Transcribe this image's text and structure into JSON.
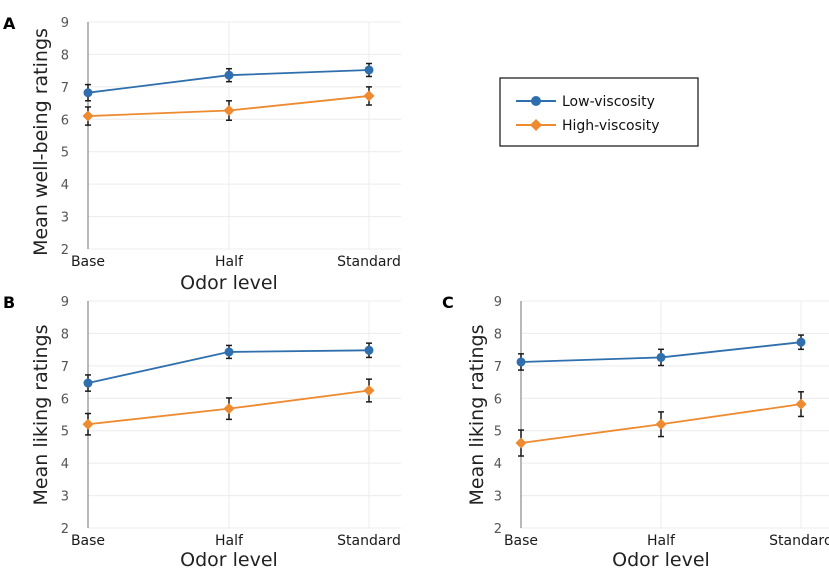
{
  "chart_data": [
    {
      "panel": "A",
      "type": "line",
      "title": "",
      "xlabel": "Odor level",
      "ylabel": "Mean well-being ratings",
      "categories": [
        "Base",
        "Half",
        "Standard"
      ],
      "ylim": [
        2,
        9
      ],
      "yticks": [
        "2",
        "3",
        "4",
        "5",
        "6",
        "7",
        "8",
        "9"
      ],
      "series": [
        {
          "name": "Low-viscosity",
          "values": [
            6.82,
            7.36,
            7.52
          ],
          "errors": [
            0.25,
            0.2,
            0.2
          ],
          "color": "#2f6fad",
          "marker": "circle"
        },
        {
          "name": "High-viscosity",
          "values": [
            6.1,
            6.27,
            6.72
          ],
          "errors": [
            0.28,
            0.3,
            0.28
          ],
          "color": "#ee8a2f",
          "marker": "diamond"
        }
      ]
    },
    {
      "panel": "B",
      "type": "line",
      "title": "",
      "xlabel": "Odor level",
      "ylabel": "Mean liking ratings",
      "categories": [
        "Base",
        "Half",
        "Standard"
      ],
      "ylim": [
        2,
        9
      ],
      "yticks": [
        "2",
        "3",
        "4",
        "5",
        "6",
        "7",
        "8",
        "9"
      ],
      "series": [
        {
          "name": "Low-viscosity",
          "values": [
            6.47,
            7.43,
            7.48
          ],
          "errors": [
            0.25,
            0.2,
            0.22
          ],
          "color": "#2f6fad",
          "marker": "circle"
        },
        {
          "name": "High-viscosity",
          "values": [
            5.2,
            5.68,
            6.24
          ],
          "errors": [
            0.33,
            0.33,
            0.35
          ],
          "color": "#ee8a2f",
          "marker": "diamond"
        }
      ]
    },
    {
      "panel": "C",
      "type": "line",
      "title": "",
      "xlabel": "Odor level",
      "ylabel": "Mean liking ratings",
      "categories": [
        "Base",
        "Half",
        "Standard"
      ],
      "ylim": [
        2,
        9
      ],
      "yticks": [
        "2",
        "3",
        "4",
        "5",
        "6",
        "7",
        "8",
        "9"
      ],
      "series": [
        {
          "name": "Low-viscosity",
          "values": [
            7.12,
            7.26,
            7.73
          ],
          "errors": [
            0.25,
            0.25,
            0.22
          ],
          "color": "#2f6fad",
          "marker": "circle"
        },
        {
          "name": "High-viscosity",
          "values": [
            4.62,
            5.2,
            5.82
          ],
          "errors": [
            0.4,
            0.38,
            0.38
          ],
          "color": "#ee8a2f",
          "marker": "diamond"
        }
      ]
    }
  ],
  "legend": {
    "position": "top-right",
    "entries": [
      {
        "label": "Low-viscosity",
        "color": "#2f6fad",
        "marker": "circle"
      },
      {
        "label": "High-viscosity",
        "color": "#ee8a2f",
        "marker": "diamond"
      }
    ]
  }
}
